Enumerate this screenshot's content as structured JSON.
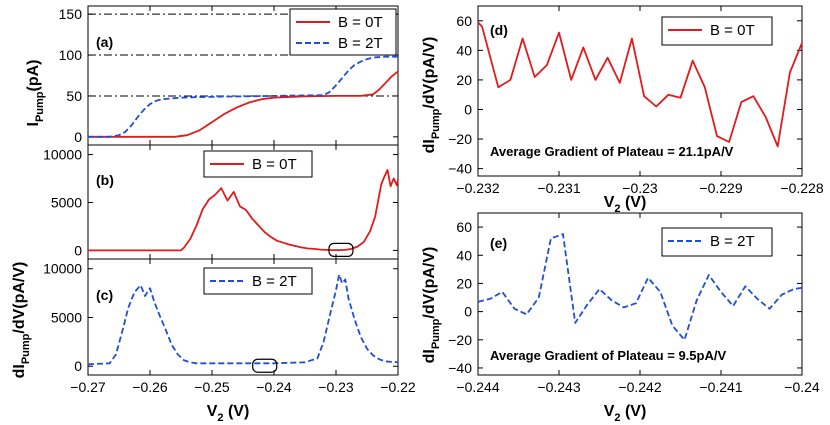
{
  "figure": {
    "shared_xlabel_left": "V",
    "shared_xlabel_left_sub": "2",
    "shared_xlabel_left_unit": " (V)"
  },
  "chart_data": [
    {
      "id": "a",
      "type": "line",
      "panel_label": "(a)",
      "ylabel_main": "I",
      "ylabel_sub": "Pump",
      "ylabel_unit": "(pA)",
      "xlim": [
        -0.27,
        -0.22
      ],
      "ylim": [
        -10,
        160
      ],
      "yticks": [
        0,
        50,
        100,
        150
      ],
      "ytick_labels": [
        "0",
        "50",
        "100",
        "150"
      ],
      "reference_lines": [
        50,
        100,
        150
      ],
      "legend": {
        "position": "top-right",
        "entries": [
          "B = 0T",
          "B = 2T"
        ]
      },
      "series": [
        {
          "name": "B = 0T",
          "color": "#e31a1c",
          "style": "solid",
          "x": [
            -0.27,
            -0.256,
            -0.254,
            -0.252,
            -0.25,
            -0.248,
            -0.246,
            -0.244,
            -0.242,
            -0.24,
            -0.235,
            -0.23,
            -0.226,
            -0.224,
            -0.223,
            -0.222,
            -0.221,
            -0.22
          ],
          "y": [
            0,
            0,
            2,
            8,
            18,
            28,
            36,
            42,
            46,
            48,
            49.5,
            50,
            50,
            52,
            58,
            66,
            74,
            80
          ]
        },
        {
          "name": "B = 2T",
          "color": "#1f4fd8",
          "style": "dashed",
          "x": [
            -0.27,
            -0.2665,
            -0.265,
            -0.264,
            -0.263,
            -0.262,
            -0.261,
            -0.26,
            -0.259,
            -0.258,
            -0.255,
            -0.25,
            -0.24,
            -0.232,
            -0.231,
            -0.23,
            -0.229,
            -0.228,
            -0.227,
            -0.226,
            -0.225,
            -0.224,
            -0.222,
            -0.22
          ],
          "y": [
            0,
            0,
            2,
            6,
            14,
            24,
            33,
            40,
            44,
            46,
            48,
            49,
            50,
            51,
            55,
            63,
            72,
            81,
            88,
            92,
            95,
            97,
            98,
            98
          ]
        }
      ]
    },
    {
      "id": "b",
      "type": "line",
      "panel_label": "(b)",
      "xlim": [
        -0.27,
        -0.22
      ],
      "ylim": [
        -900,
        11000
      ],
      "yticks": [
        0,
        5000,
        10000
      ],
      "ytick_labels": [
        "0",
        "5000",
        "10000"
      ],
      "legend": {
        "position": "top-center",
        "entries": [
          "B = 0T"
        ]
      },
      "marker_ellipse_x": -0.2292,
      "series": [
        {
          "name": "B = 0T",
          "color": "#e31a1c",
          "style": "solid",
          "x": [
            -0.27,
            -0.255,
            -0.2545,
            -0.2535,
            -0.2525,
            -0.2515,
            -0.2505,
            -0.2495,
            -0.2485,
            -0.2475,
            -0.2465,
            -0.2455,
            -0.2445,
            -0.2435,
            -0.2425,
            -0.2415,
            -0.2405,
            -0.2395,
            -0.2385,
            -0.2375,
            -0.2365,
            -0.2355,
            -0.2345,
            -0.2335,
            -0.2325,
            -0.2315,
            -0.2305,
            -0.2295,
            -0.2285,
            -0.2275,
            -0.2265,
            -0.2255,
            -0.2245,
            -0.2237,
            -0.2232,
            -0.2227,
            -0.2222,
            -0.2217,
            -0.2212,
            -0.2207,
            -0.2202,
            -0.22
          ],
          "y": [
            0,
            0,
            300,
            1200,
            2600,
            4300,
            5300,
            5800,
            6500,
            5200,
            6100,
            4600,
            4200,
            3300,
            2600,
            1900,
            1400,
            1000,
            800,
            600,
            450,
            300,
            200,
            150,
            80,
            50,
            30,
            30,
            50,
            150,
            400,
            900,
            2000,
            3500,
            5200,
            6900,
            7700,
            8400,
            6700,
            7500,
            6800,
            7400
          ]
        }
      ]
    },
    {
      "id": "c",
      "type": "line",
      "panel_label": "(c)",
      "ylabel_main": "dI",
      "ylabel_sub": "Pump",
      "ylabel_unit": "/dV(pA/V)",
      "xlim": [
        -0.27,
        -0.22
      ],
      "ylim": [
        -900,
        11000
      ],
      "yticks": [
        0,
        5000,
        10000
      ],
      "ytick_labels": [
        "0",
        "5000",
        "10000"
      ],
      "xticks": [
        -0.27,
        -0.26,
        -0.25,
        -0.24,
        -0.23,
        -0.22
      ],
      "xtick_labels": [
        "−0.27",
        "−0.26",
        "−0.25",
        "−0.24",
        "−0.23",
        "−0.22"
      ],
      "legend": {
        "position": "top-center",
        "entries": [
          "B = 2T"
        ]
      },
      "marker_ellipse_x": -0.2415,
      "series": [
        {
          "name": "B = 2T",
          "color": "#1f4fd8",
          "style": "dashed",
          "x": [
            -0.27,
            -0.2665,
            -0.2655,
            -0.2645,
            -0.2635,
            -0.2625,
            -0.2615,
            -0.2608,
            -0.26,
            -0.2593,
            -0.2585,
            -0.2575,
            -0.2565,
            -0.2555,
            -0.2545,
            -0.2535,
            -0.2525,
            -0.25,
            -0.24,
            -0.235,
            -0.233,
            -0.232,
            -0.231,
            -0.23,
            -0.2295,
            -0.229,
            -0.2285,
            -0.228,
            -0.227,
            -0.226,
            -0.225,
            -0.224,
            -0.223,
            -0.222,
            -0.22
          ],
          "y": [
            200,
            300,
            1200,
            3500,
            6000,
            7600,
            8300,
            7200,
            8000,
            6600,
            5300,
            3800,
            2200,
            1200,
            600,
            400,
            300,
            300,
            300,
            400,
            800,
            2500,
            5200,
            7800,
            9400,
            8500,
            8900,
            7000,
            4800,
            3000,
            1800,
            1100,
            700,
            500,
            400
          ]
        }
      ]
    },
    {
      "id": "d",
      "type": "line",
      "panel_label": "(d)",
      "ylabel_main": "dI",
      "ylabel_sub": "Pump",
      "ylabel_unit": "/dV(pA/V)",
      "xlabel_main": "V",
      "xlabel_sub": "2",
      "xlabel_unit": " (V)",
      "xlim": [
        -0.232,
        -0.228
      ],
      "ylim": [
        -45,
        70
      ],
      "yticks": [
        -40,
        -20,
        0,
        20,
        40,
        60
      ],
      "ytick_labels": [
        "−40",
        "−20",
        "0",
        "20",
        "40",
        "60"
      ],
      "xticks": [
        -0.232,
        -0.231,
        -0.23,
        -0.229,
        -0.228
      ],
      "xtick_labels": [
        "−0.232",
        "−0.231",
        "−0.23",
        "−0.229",
        "−0.228"
      ],
      "annotation": "Average Gradient of Plateau = 21.1pA/V",
      "legend": {
        "position": "top-right",
        "entries": [
          "B = 0T"
        ]
      },
      "series": [
        {
          "name": "B = 0T",
          "color": "#e31a1c",
          "style": "solid",
          "x": [
            -0.232,
            -0.23195,
            -0.23175,
            -0.2316,
            -0.23145,
            -0.2313,
            -0.23115,
            -0.231,
            -0.23085,
            -0.2307,
            -0.23055,
            -0.2304,
            -0.23025,
            -0.2301,
            -0.22995,
            -0.2298,
            -0.22965,
            -0.2295,
            -0.22935,
            -0.2292,
            -0.22905,
            -0.2289,
            -0.22875,
            -0.2286,
            -0.22845,
            -0.2283,
            -0.22815,
            -0.228
          ],
          "y": [
            59,
            56,
            15,
            20,
            48,
            22,
            30,
            52,
            20,
            42,
            20,
            35,
            18,
            48,
            9,
            2,
            10,
            8,
            33,
            15,
            -18,
            -22,
            5,
            9,
            -5,
            -25,
            25,
            45
          ]
        }
      ]
    },
    {
      "id": "e",
      "type": "line",
      "panel_label": "(e)",
      "ylabel_main": "dI",
      "ylabel_sub": "Pump",
      "ylabel_unit": "/dV(pA/V)",
      "xlabel_main": "V",
      "xlabel_sub": "2",
      "xlabel_unit": " (V)",
      "xlim": [
        -0.244,
        -0.24
      ],
      "ylim": [
        -45,
        70
      ],
      "yticks": [
        -40,
        -20,
        0,
        20,
        40,
        60
      ],
      "ytick_labels": [
        "−40",
        "−20",
        "0",
        "20",
        "40",
        "60"
      ],
      "xticks": [
        -0.244,
        -0.243,
        -0.242,
        -0.241,
        -0.24
      ],
      "xtick_labels": [
        "−0.244",
        "−0.243",
        "−0.242",
        "−0.241",
        "−0.24"
      ],
      "annotation": "Average Gradient of Plateau = 9.5pA/V",
      "legend": {
        "position": "top-right",
        "entries": [
          "B = 2T"
        ]
      },
      "series": [
        {
          "name": "B = 2T",
          "color": "#1f4fd8",
          "style": "dashed",
          "x": [
            -0.244,
            -0.24385,
            -0.2437,
            -0.24355,
            -0.2434,
            -0.24325,
            -0.2431,
            -0.24295,
            -0.2428,
            -0.24265,
            -0.2425,
            -0.24235,
            -0.2422,
            -0.24205,
            -0.2419,
            -0.24175,
            -0.2416,
            -0.24145,
            -0.2413,
            -0.24115,
            -0.241,
            -0.24085,
            -0.2407,
            -0.24055,
            -0.2404,
            -0.24025,
            -0.2401,
            -0.24
          ],
          "y": [
            7,
            9,
            14,
            2,
            -2,
            10,
            52,
            55,
            -8,
            5,
            16,
            8,
            3,
            6,
            24,
            14,
            -10,
            -20,
            8,
            26,
            14,
            4,
            18,
            9,
            2,
            12,
            16,
            17
          ]
        }
      ]
    }
  ]
}
